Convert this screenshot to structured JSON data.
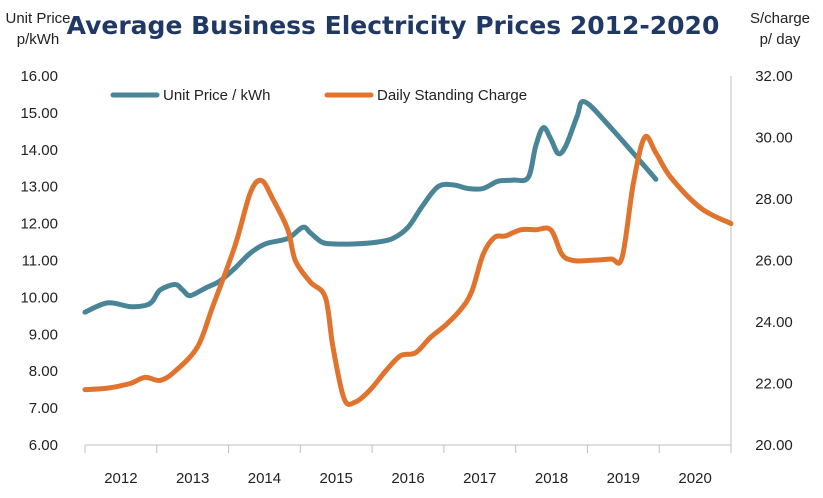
{
  "chart_data": {
    "type": "line",
    "title": "Average Business Electricity Prices 2012-2020",
    "ylabel_left": [
      "Unit Price",
      "p/kWh"
    ],
    "ylabel_right": [
      "S/charge",
      "p/ day"
    ],
    "ylim_left": [
      6,
      16
    ],
    "ylim_right": [
      20,
      32
    ],
    "yticks_left": [
      "6.00",
      "7.00",
      "8.00",
      "9.00",
      "10.00",
      "11.00",
      "12.00",
      "13.00",
      "14.00",
      "15.00",
      "16.00"
    ],
    "yticks_right": [
      "20.00",
      "22.00",
      "24.00",
      "26.00",
      "28.00",
      "30.00",
      "32.00"
    ],
    "xlim": [
      2012,
      2020.6
    ],
    "xticks": [
      "2012",
      "2013",
      "2014",
      "2015",
      "2016",
      "2017",
      "2018",
      "2019",
      "2020"
    ],
    "legend": [
      "Unit Price / kWh",
      "Daily Standing Charge"
    ],
    "series": [
      {
        "name": "Unit Price / kWh",
        "axis": "left",
        "color": "#4a8597",
        "points": [
          [
            2012.0,
            9.6
          ],
          [
            2012.3,
            9.85
          ],
          [
            2012.6,
            9.75
          ],
          [
            2012.8,
            9.78
          ],
          [
            2012.9,
            9.9
          ],
          [
            2013.0,
            10.2
          ],
          [
            2013.2,
            10.35
          ],
          [
            2013.3,
            10.2
          ],
          [
            2013.4,
            10.05
          ],
          [
            2013.6,
            10.25
          ],
          [
            2013.8,
            10.45
          ],
          [
            2014.0,
            10.8
          ],
          [
            2014.2,
            11.2
          ],
          [
            2014.4,
            11.45
          ],
          [
            2014.7,
            11.6
          ],
          [
            2014.9,
            11.9
          ],
          [
            2015.0,
            11.75
          ],
          [
            2015.15,
            11.5
          ],
          [
            2015.3,
            11.45
          ],
          [
            2015.6,
            11.45
          ],
          [
            2015.9,
            11.5
          ],
          [
            2016.1,
            11.6
          ],
          [
            2016.3,
            11.9
          ],
          [
            2016.5,
            12.5
          ],
          [
            2016.7,
            13.0
          ],
          [
            2016.9,
            13.05
          ],
          [
            2017.1,
            12.95
          ],
          [
            2017.3,
            12.95
          ],
          [
            2017.5,
            13.15
          ],
          [
            2017.7,
            13.18
          ],
          [
            2017.9,
            13.25
          ],
          [
            2018.0,
            14.1
          ],
          [
            2018.1,
            14.6
          ],
          [
            2018.2,
            14.3
          ],
          [
            2018.3,
            13.9
          ],
          [
            2018.4,
            14.1
          ],
          [
            2018.55,
            14.9
          ],
          [
            2018.65,
            15.3
          ],
          [
            2019.0,
            14.6
          ],
          [
            2019.6,
            13.2
          ]
        ]
      },
      {
        "name": "Daily Standing Charge",
        "axis": "right",
        "color": "#e0742e",
        "points": [
          [
            2012.0,
            21.8
          ],
          [
            2012.3,
            21.85
          ],
          [
            2012.6,
            22.0
          ],
          [
            2012.8,
            22.2
          ],
          [
            2013.0,
            22.1
          ],
          [
            2013.2,
            22.4
          ],
          [
            2013.5,
            23.2
          ],
          [
            2013.7,
            24.5
          ],
          [
            2014.0,
            26.5
          ],
          [
            2014.2,
            28.2
          ],
          [
            2014.35,
            28.6
          ],
          [
            2014.5,
            28.0
          ],
          [
            2014.7,
            27.0
          ],
          [
            2014.8,
            26.0
          ],
          [
            2015.0,
            25.3
          ],
          [
            2015.2,
            24.8
          ],
          [
            2015.3,
            23.2
          ],
          [
            2015.45,
            21.5
          ],
          [
            2015.6,
            21.4
          ],
          [
            2015.8,
            21.8
          ],
          [
            2016.0,
            22.4
          ],
          [
            2016.2,
            22.9
          ],
          [
            2016.4,
            23.0
          ],
          [
            2016.6,
            23.5
          ],
          [
            2016.8,
            23.9
          ],
          [
            2017.0,
            24.4
          ],
          [
            2017.15,
            25.0
          ],
          [
            2017.3,
            26.2
          ],
          [
            2017.45,
            26.75
          ],
          [
            2017.6,
            26.8
          ],
          [
            2017.8,
            27.0
          ],
          [
            2018.0,
            27.0
          ],
          [
            2018.2,
            27.0
          ],
          [
            2018.35,
            26.2
          ],
          [
            2018.5,
            26.0
          ],
          [
            2018.7,
            26.0
          ],
          [
            2019.0,
            26.05
          ],
          [
            2019.15,
            26.1
          ],
          [
            2019.3,
            28.5
          ],
          [
            2019.45,
            30.0
          ],
          [
            2019.6,
            29.5
          ],
          [
            2019.8,
            28.7
          ],
          [
            2020.2,
            27.7
          ],
          [
            2020.6,
            27.2
          ]
        ]
      }
    ]
  }
}
